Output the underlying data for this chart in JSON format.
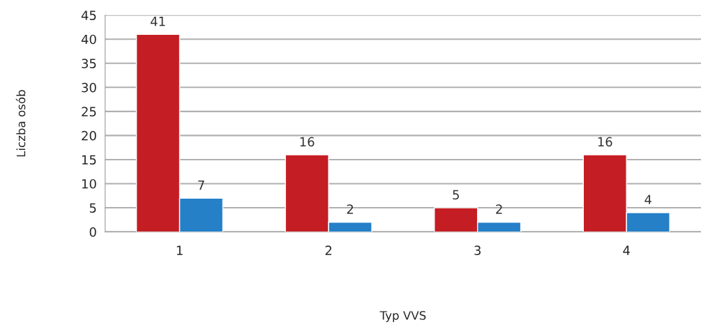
{
  "chart_data": {
    "type": "bar",
    "xlabel": "Typ VVS",
    "ylabel": "Liczba osób",
    "categories": [
      "1",
      "2",
      "3",
      "4"
    ],
    "series": [
      {
        "color": "#c41e24",
        "values": [
          41,
          16,
          5,
          16
        ]
      },
      {
        "color": "#2580c8",
        "values": [
          7,
          2,
          2,
          4
        ]
      }
    ],
    "ylim": [
      0,
      45
    ],
    "yticks": [
      0,
      5,
      10,
      15,
      20,
      25,
      30,
      35,
      40,
      45
    ],
    "grid": "y",
    "data_labels": true
  }
}
